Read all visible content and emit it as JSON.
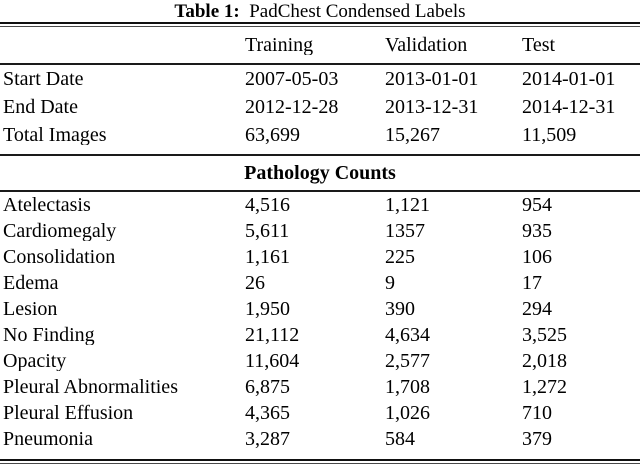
{
  "table": {
    "caption": {
      "label": "Table 1:",
      "text": "PadChest Condensed Labels"
    },
    "columns": {
      "c1": "Training",
      "c2": "Validation",
      "c3": "Test"
    },
    "info_rows": [
      {
        "label": "Start Date",
        "training": "2007-05-03",
        "validation": "2013-01-01",
        "test": "2014-01-01"
      },
      {
        "label": "End Date",
        "training": "2012-12-28",
        "validation": "2013-12-31",
        "test": "2014-12-31"
      },
      {
        "label": "Total Images",
        "training": "63,699",
        "validation": "15,267",
        "test": "11,509"
      }
    ],
    "section_header": "Pathology Counts",
    "pathology_rows": [
      {
        "label": "Atelectasis",
        "training": "4,516",
        "validation": "1,121",
        "test": "954"
      },
      {
        "label": "Cardiomegaly",
        "training": "5,611",
        "validation": "1357",
        "test": "935"
      },
      {
        "label": "Consolidation",
        "training": "1,161",
        "validation": "225",
        "test": "106"
      },
      {
        "label": "Edema",
        "training": "26",
        "validation": "9",
        "test": "17"
      },
      {
        "label": "Lesion",
        "training": "1,950",
        "validation": "390",
        "test": "294"
      },
      {
        "label": "No Finding",
        "training": "21,112",
        "validation": "4,634",
        "test": "3,525"
      },
      {
        "label": "Opacity",
        "training": "11,604",
        "validation": "2,577",
        "test": "2,018"
      },
      {
        "label": "Pleural Abnormalities",
        "training": "6,875",
        "validation": "1,708",
        "test": "1,272"
      },
      {
        "label": "Pleural Effusion",
        "training": "4,365",
        "validation": "1,026",
        "test": "710"
      },
      {
        "label": "Pneumonia",
        "training": "3,287",
        "validation": "584",
        "test": "379"
      }
    ],
    "colors": {
      "text": "#000000",
      "background": "#ffffff",
      "rule": "#1a1a1a"
    }
  }
}
